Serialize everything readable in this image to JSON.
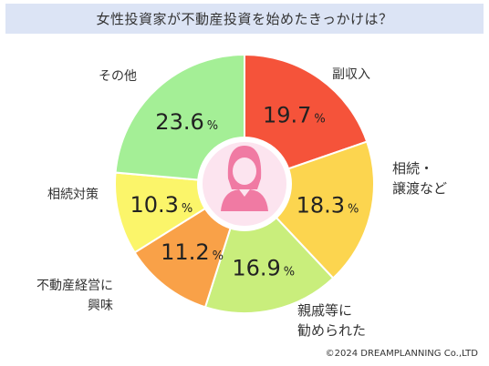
{
  "chart_data": {
    "type": "pie",
    "title": "女性投資家が不動産投資を始めたきっかけは？",
    "slices": [
      {
        "label": "副収入",
        "value": 19.7,
        "color": "#f5533a"
      },
      {
        "label": "相続・\n譲渡など",
        "value": 18.3,
        "color": "#fcd54f"
      },
      {
        "label": "親戚等に\n勧められた",
        "value": 16.9,
        "color": "#c9ee7c"
      },
      {
        "label": "不動産経営に\n興味",
        "value": 11.2,
        "color": "#f9a148"
      },
      {
        "label": "相続対策",
        "value": 10.3,
        "color": "#fbf56a"
      },
      {
        "label": "その他",
        "value": 23.6,
        "color": "#a4ef96"
      }
    ],
    "unit": "%"
  },
  "icon": "woman-avatar-icon",
  "credit": "©2024 DREAMPLANNING Co.,LTD"
}
